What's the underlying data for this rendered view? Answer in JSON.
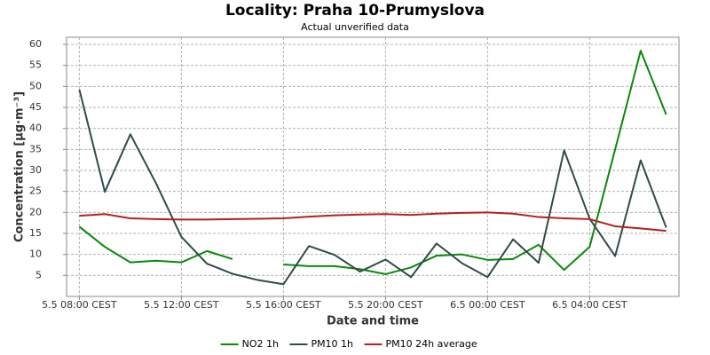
{
  "chart_data": {
    "type": "line",
    "title": "Locality: Praha 10-Prumyslova",
    "subtitle": "Actual unverified data",
    "x_label": "Date and time",
    "y_label": "Concentration [µg·m⁻³]",
    "categories": [
      "5.5 08:00 CEST",
      null,
      null,
      null,
      "5.5 12:00 CEST",
      null,
      null,
      null,
      "5.5 16:00 CEST",
      null,
      null,
      null,
      "5.5 20:00 CEST",
      null,
      null,
      null,
      "6.5 00:00 CEST",
      null,
      null,
      null,
      "6.5 04:00 CEST",
      null,
      null,
      null
    ],
    "ylim": [
      0,
      61.7
    ],
    "yticks": [
      5,
      10,
      15,
      20,
      25,
      30,
      35,
      40,
      45,
      50,
      55,
      60
    ],
    "grid": true,
    "legend": "bottom",
    "series": [
      {
        "name": "NO2 1h",
        "color": "#0a8a0a",
        "values": [
          16.6,
          11.8,
          8.1,
          8.5,
          8.1,
          10.8,
          8.9,
          null,
          7.6,
          7.2,
          7.2,
          6.5,
          5.3,
          6.9,
          9.7,
          10.0,
          8.7,
          8.9,
          12.3,
          6.3,
          11.8,
          35,
          58.5,
          43.3
        ]
      },
      {
        "name": "PM10 1h",
        "color": "#324a4a",
        "values": [
          49.3,
          24.9,
          38.6,
          27,
          14.2,
          7.8,
          5.4,
          3.9,
          2.9,
          12,
          9.9,
          5.9,
          8.8,
          4.6,
          12.6,
          7.9,
          4.6,
          13.6,
          8,
          34.8,
          18.5,
          9.6,
          32.4,
          16.4
        ]
      },
      {
        "name": "PM10 24h average",
        "color": "#b52020",
        "values": [
          19.2,
          19.6,
          18.6,
          18.4,
          18.3,
          18.3,
          18.4,
          18.5,
          18.6,
          19.0,
          19.3,
          19.5,
          19.6,
          19.4,
          19.7,
          19.9,
          20.0,
          19.7,
          18.9,
          18.6,
          18.4,
          16.7,
          16.2,
          15.6
        ]
      }
    ]
  }
}
